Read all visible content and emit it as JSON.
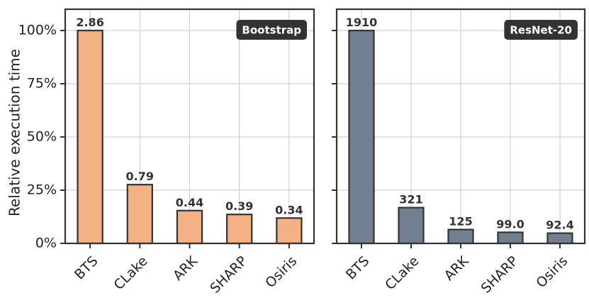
{
  "colors": {
    "bootstrap_bar": "#f4b183",
    "resnet_bar": "#708090",
    "edge": "#333333",
    "grid": "#d0d0d0",
    "badge_bg": "#333333"
  },
  "chart_data": [
    {
      "type": "bar",
      "title": "Bootstrap",
      "ylabel": "Relative execution time",
      "ylim": [
        0,
        110
      ],
      "yticks": [
        "0%",
        "25%",
        "50%",
        "75%",
        "100%"
      ],
      "categories": [
        "BTS",
        "CLake",
        "ARK",
        "SHARP",
        "Osiris"
      ],
      "values": [
        100,
        27.6,
        15.4,
        13.6,
        11.9
      ],
      "data_labels": [
        "2.86",
        "0.79",
        "0.44",
        "0.39",
        "0.34"
      ],
      "grid": true
    },
    {
      "type": "bar",
      "title": "ResNet-20",
      "ylim": [
        0,
        110
      ],
      "categories": [
        "BTS",
        "CLake",
        "ARK",
        "SHARP",
        "Osiris"
      ],
      "values": [
        100,
        16.8,
        6.5,
        5.2,
        4.8
      ],
      "data_labels": [
        "1910",
        "321",
        "125",
        "99.0",
        "92.4"
      ],
      "grid": true
    }
  ]
}
